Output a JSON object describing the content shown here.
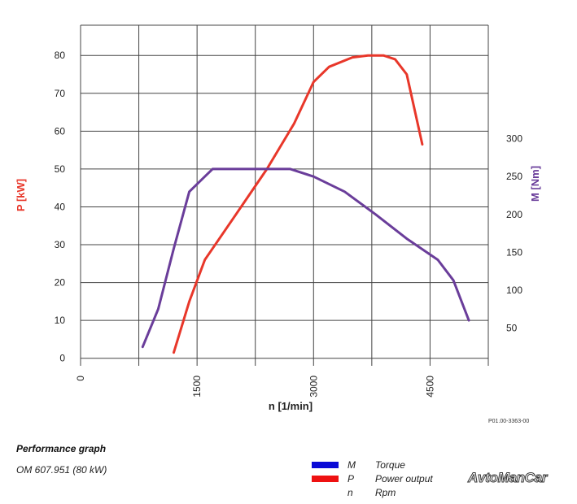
{
  "chart_data": {
    "type": "line",
    "x_axis": {
      "label": "n [1/min]",
      "range": [
        0,
        5250
      ],
      "ticks": [
        0,
        1500,
        3000,
        4500
      ],
      "grid_step": 750
    },
    "y_left": {
      "label": "P [kW]",
      "range": [
        -2,
        88
      ],
      "ticks": [
        0,
        10,
        20,
        30,
        40,
        50,
        60,
        70,
        80
      ]
    },
    "y_right": {
      "label": "M [Nm]",
      "range": [
        0,
        450
      ],
      "ticks": [
        50,
        100,
        150,
        200,
        250,
        300
      ]
    },
    "grid": true,
    "series": [
      {
        "name": "P",
        "axis": "left",
        "color": "#e8372a",
        "points": [
          [
            1200,
            1.5
          ],
          [
            1400,
            15
          ],
          [
            1600,
            26
          ],
          [
            2000,
            38
          ],
          [
            2400,
            50
          ],
          [
            2750,
            62
          ],
          [
            3000,
            73
          ],
          [
            3200,
            77
          ],
          [
            3500,
            79.5
          ],
          [
            3700,
            80
          ],
          [
            3900,
            80
          ],
          [
            4050,
            79
          ],
          [
            4200,
            75
          ],
          [
            4400,
            56.5
          ]
        ]
      },
      {
        "name": "M",
        "axis": "right",
        "color": "#6a3d9a",
        "points": [
          [
            800,
            25
          ],
          [
            1000,
            75
          ],
          [
            1200,
            155
          ],
          [
            1400,
            230
          ],
          [
            1700,
            260
          ],
          [
            2000,
            260
          ],
          [
            2700,
            260
          ],
          [
            3000,
            250
          ],
          [
            3400,
            230
          ],
          [
            3800,
            200
          ],
          [
            4200,
            168
          ],
          [
            4600,
            140
          ],
          [
            4800,
            113
          ],
          [
            5000,
            60
          ]
        ]
      }
    ]
  },
  "reference_code": "P01.00-3363-00",
  "caption": {
    "title": "Performance graph",
    "subtitle": "OM 607.951 (80 kW)"
  },
  "legend": [
    {
      "symbol": "M",
      "label": "Torque",
      "color": "#0a0ad6"
    },
    {
      "symbol": "P",
      "label": "Power output",
      "color": "#ee1111"
    },
    {
      "symbol": "n",
      "label": "Rpm",
      "color": ""
    }
  ],
  "watermark": "AvtoManCar"
}
